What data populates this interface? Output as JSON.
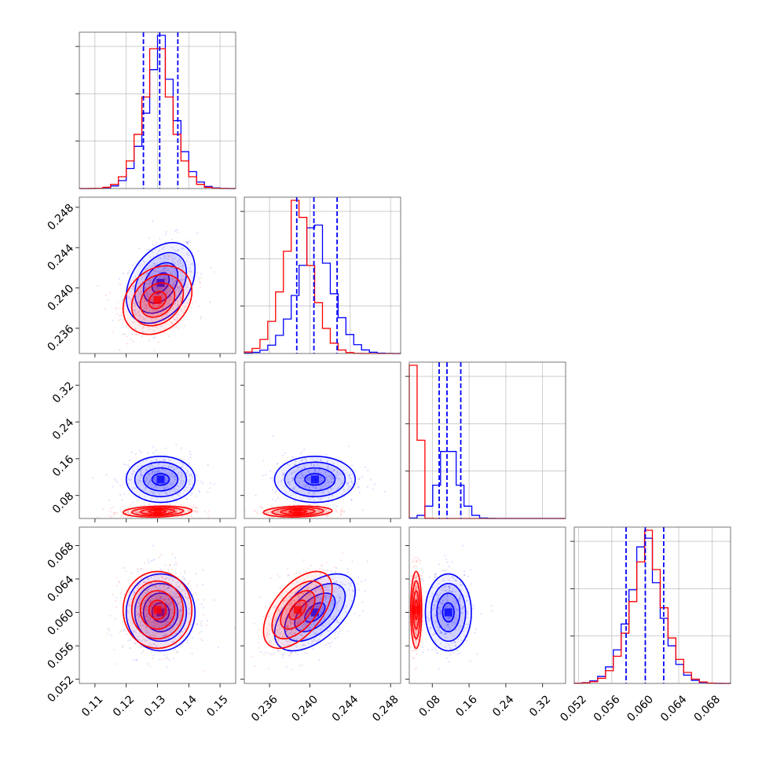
{
  "colors": {
    "blue": "#0000ff",
    "red": "#ff0000",
    "grid": "#b0b0b0"
  },
  "chart_data": {
    "type": "corner",
    "grid": true,
    "series": [
      {
        "color": "#0000ff",
        "means": [
          0.131,
          0.2405,
          0.115,
          0.06
        ],
        "stds": [
          0.0055,
          0.002,
          0.025,
          0.0023
        ],
        "quantiles": [
          [
            0.1255,
            0.1307,
            0.1365
          ],
          [
            0.2387,
            0.2404,
            0.2427
          ],
          [
            0.095,
            0.112,
            0.142
          ],
          [
            0.0577,
            0.06,
            0.0622
          ]
        ],
        "correlations": [
          [
            1,
            0.35,
            0.0,
            0.0
          ],
          [
            0.35,
            1,
            0.0,
            0.55
          ],
          [
            0.0,
            0.0,
            1,
            0.0
          ],
          [
            0.0,
            0.55,
            0.0,
            1
          ]
        ]
      },
      {
        "color": "#ff0000",
        "means": [
          0.13,
          0.2388,
          0.045,
          0.0603
        ],
        "stds": [
          0.0055,
          0.0017,
          0.006,
          0.0023
        ],
        "correlations": [
          [
            1,
            0.25,
            0.15,
            0.0
          ],
          [
            0.25,
            1,
            0.15,
            0.55
          ],
          [
            0.15,
            0.15,
            1,
            0.0
          ],
          [
            0.0,
            0.55,
            0.0,
            1
          ]
        ]
      }
    ],
    "params": [
      {
        "range": [
          0.105,
          0.155
        ],
        "ticks": [
          "0.11",
          "0.12",
          "0.13",
          "0.14",
          "0.15"
        ]
      },
      {
        "range": [
          0.2335,
          0.249
        ],
        "ticks": [
          "0.236",
          "0.240",
          "0.244",
          "0.248"
        ]
      },
      {
        "range": [
          0.03,
          0.37
        ],
        "ticks": [
          "0.08",
          "0.16",
          "0.24",
          "0.32"
        ]
      },
      {
        "range": [
          0.0515,
          0.0702
        ],
        "ticks": [
          "0.052",
          "0.056",
          "0.060",
          "0.064",
          "0.068"
        ]
      }
    ]
  }
}
